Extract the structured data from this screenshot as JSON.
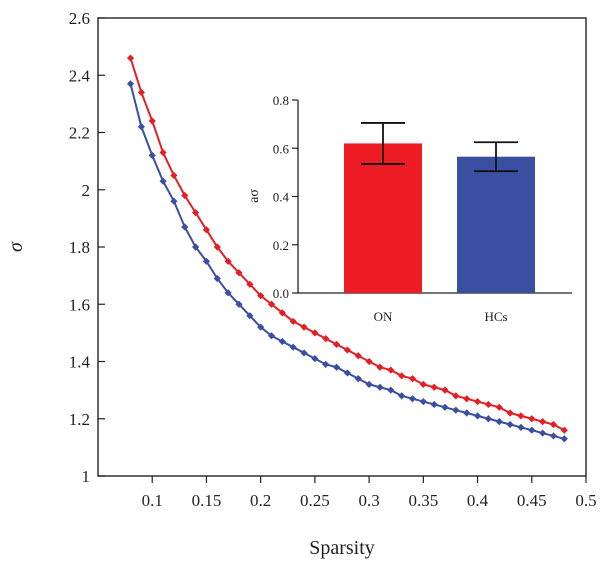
{
  "chart_data": [
    {
      "type": "line",
      "xlabel": "Sparsity",
      "ylabel": "σ",
      "xlim": [
        0.05,
        0.5
      ],
      "ylim": [
        1,
        2.6
      ],
      "xticks": [
        "0.1",
        "0.15",
        "0.2",
        "0.25",
        "0.3",
        "0.35",
        "0.4",
        "0.45",
        "0.5"
      ],
      "yticks": [
        "1",
        "1.2",
        "1.4",
        "1.6",
        "1.8",
        "2",
        "2.2",
        "2.4",
        "2.6"
      ],
      "grid": false,
      "x": [
        0.08,
        0.09,
        0.1,
        0.11,
        0.12,
        0.13,
        0.14,
        0.15,
        0.16,
        0.17,
        0.18,
        0.19,
        0.2,
        0.21,
        0.22,
        0.23,
        0.24,
        0.25,
        0.26,
        0.27,
        0.28,
        0.29,
        0.3,
        0.31,
        0.32,
        0.33,
        0.34,
        0.35,
        0.36,
        0.37,
        0.38,
        0.39,
        0.4,
        0.41,
        0.42,
        0.43,
        0.44,
        0.45,
        0.46,
        0.47,
        0.48
      ],
      "series": [
        {
          "color": "#e31e24",
          "values": [
            2.46,
            2.34,
            2.24,
            2.13,
            2.05,
            1.98,
            1.92,
            1.86,
            1.8,
            1.75,
            1.71,
            1.67,
            1.63,
            1.6,
            1.57,
            1.54,
            1.52,
            1.5,
            1.48,
            1.46,
            1.44,
            1.42,
            1.4,
            1.38,
            1.37,
            1.35,
            1.34,
            1.32,
            1.31,
            1.3,
            1.28,
            1.27,
            1.26,
            1.25,
            1.24,
            1.22,
            1.21,
            1.2,
            1.19,
            1.18,
            1.16
          ]
        },
        {
          "color": "#3a4fa2",
          "values": [
            2.37,
            2.22,
            2.12,
            2.03,
            1.96,
            1.87,
            1.8,
            1.75,
            1.69,
            1.64,
            1.6,
            1.56,
            1.52,
            1.49,
            1.47,
            1.45,
            1.43,
            1.41,
            1.39,
            1.38,
            1.36,
            1.34,
            1.32,
            1.31,
            1.3,
            1.28,
            1.27,
            1.26,
            1.25,
            1.24,
            1.23,
            1.22,
            1.21,
            1.2,
            1.19,
            1.18,
            1.17,
            1.16,
            1.15,
            1.14,
            1.13
          ]
        }
      ]
    },
    {
      "type": "bar",
      "categories": [
        "ON",
        "HCs"
      ],
      "values": [
        0.62,
        0.565
      ],
      "errors": [
        0.085,
        0.06
      ],
      "colors": [
        "#ed1c24",
        "#3a4fa2"
      ],
      "ylabel": "aσ",
      "ylim": [
        0,
        0.8
      ],
      "yticks": [
        "0.0",
        "0.2",
        "0.4",
        "0.6",
        "0.8"
      ],
      "grid": false
    }
  ]
}
